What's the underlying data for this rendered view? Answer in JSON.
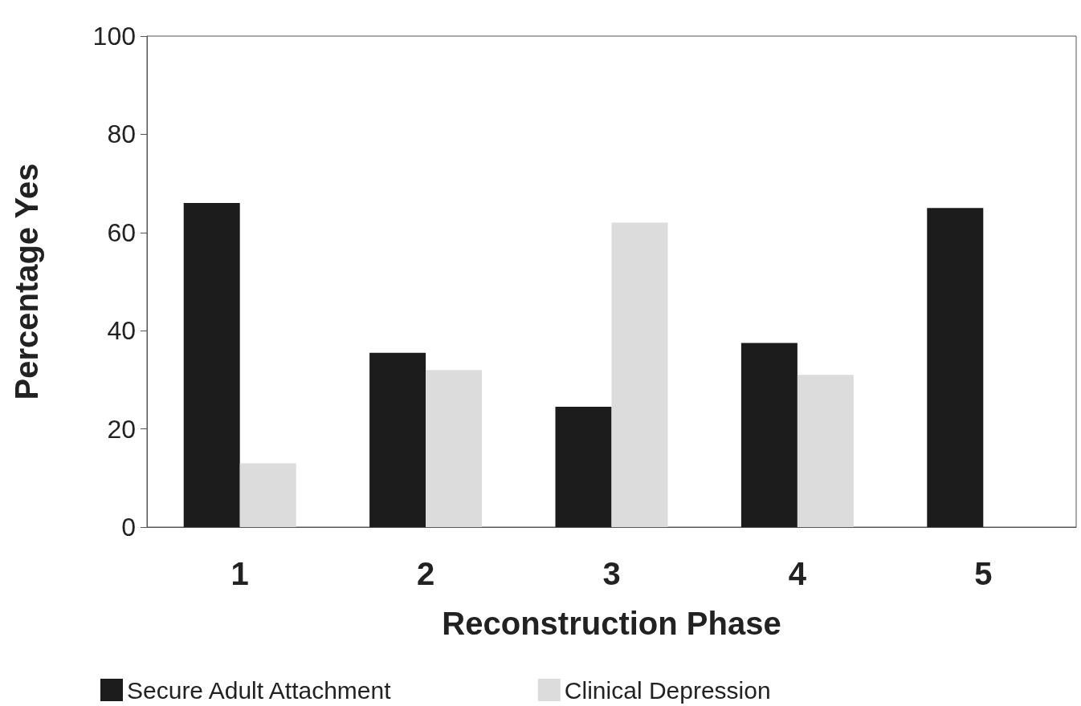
{
  "chart_data": {
    "type": "bar",
    "xlabel": "Reconstruction Phase",
    "ylabel": "Percentage Yes",
    "categories": [
      "1",
      "2",
      "3",
      "4",
      "5"
    ],
    "series": [
      {
        "name": "Secure Adult Attachment",
        "color": "#1c1c1c",
        "values": [
          66,
          35.5,
          24.5,
          37.5,
          65
        ]
      },
      {
        "name": "Clinical Depression",
        "color": "#dcdcdc",
        "values": [
          13,
          32,
          62,
          31,
          0
        ]
      }
    ],
    "ylim": [
      0,
      100
    ],
    "yticks": [
      0,
      20,
      40,
      60,
      80,
      100
    ],
    "grid": false,
    "legend": "bottom"
  }
}
